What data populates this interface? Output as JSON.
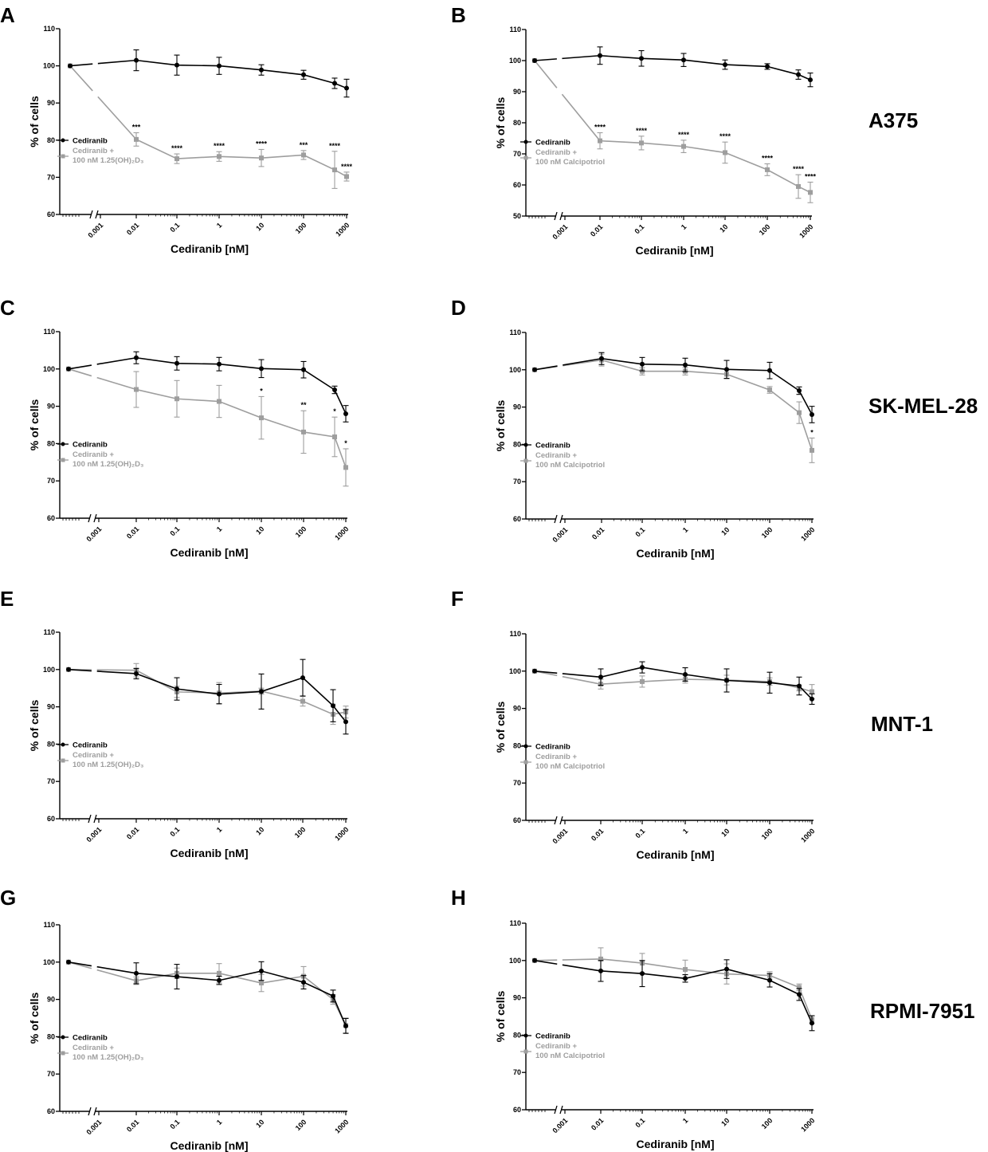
{
  "colors": {
    "control": "#000000",
    "combo": "#9e9e9e"
  },
  "cell_lines": [
    {
      "name": "A375"
    },
    {
      "name": "SK-MEL-28"
    },
    {
      "name": "MNT-1"
    },
    {
      "name": "RPMI-7951"
    }
  ],
  "chart_data": [
    {
      "panel": "A",
      "type": "line",
      "xlabel": "Cediranib [nM]",
      "ylabel": "% of cells",
      "xscale": "log",
      "xticks": [
        "0.001",
        "0.01",
        "0.1",
        "1",
        "10",
        "100",
        "1000"
      ],
      "yticks": [
        "60",
        "70",
        "80",
        "90",
        "100",
        "110"
      ],
      "ylim": [
        60,
        110
      ],
      "legend": [
        "Cediranib",
        "Cediranib +",
        "100 nM 1.25(OH)₂D₃"
      ],
      "series": [
        {
          "name": "Cediranib",
          "x": [
            0,
            0.01,
            0.1,
            1,
            10,
            100,
            500,
            1000
          ],
          "y": [
            100,
            101.5,
            100.2,
            100.0,
            98.9,
            97.6,
            95.3,
            94.0
          ],
          "err": [
            0,
            2.8,
            2.7,
            2.3,
            1.4,
            1.2,
            1.4,
            2.4
          ]
        },
        {
          "name": "Cediranib + 100 nM 1.25(OH)2D3",
          "x": [
            0,
            0.01,
            0.1,
            1,
            10,
            100,
            500,
            1000
          ],
          "y": [
            100,
            80.2,
            75.0,
            75.6,
            75.2,
            76.0,
            72.0,
            70.2
          ],
          "err": [
            0,
            1.8,
            1.3,
            1.3,
            2.3,
            1.2,
            5.0,
            1.2
          ],
          "stars": [
            "",
            "***",
            "****",
            "****",
            "****",
            "***",
            "****",
            "****"
          ]
        }
      ]
    },
    {
      "panel": "B",
      "type": "line",
      "xlabel": "Cediranib [nM]",
      "ylabel": "% of cells",
      "xscale": "log",
      "xticks": [
        "0.001",
        "0.01",
        "0.1",
        "1",
        "10",
        "100",
        "1000"
      ],
      "yticks": [
        "50",
        "60",
        "70",
        "80",
        "90",
        "100",
        "110"
      ],
      "ylim": [
        50,
        110
      ],
      "legend": [
        "Cediranib",
        "Cediranib +",
        "100 nM Calcipotriol"
      ],
      "series": [
        {
          "name": "Cediranib",
          "x": [
            0,
            0.01,
            0.1,
            1,
            10,
            100,
            500,
            1000
          ],
          "y": [
            100,
            101.6,
            100.7,
            100.2,
            98.7,
            98.1,
            95.5,
            93.8
          ],
          "err": [
            0,
            2.8,
            2.5,
            2.1,
            1.5,
            0.9,
            1.5,
            2.2
          ]
        },
        {
          "name": "Cediranib + 100 nM Calcipotriol",
          "x": [
            0,
            0.01,
            0.1,
            1,
            10,
            100,
            500,
            1000
          ],
          "y": [
            100,
            74.2,
            73.5,
            72.4,
            70.4,
            64.9,
            59.5,
            57.6
          ],
          "err": [
            0,
            2.6,
            2.2,
            2.0,
            3.4,
            1.9,
            3.8,
            3.3
          ],
          "stars": [
            "",
            "****",
            "****",
            "****",
            "****",
            "****",
            "****",
            "****"
          ]
        }
      ]
    },
    {
      "panel": "C",
      "type": "line",
      "xlabel": "Cediranib [nM]",
      "ylabel": "% of cells",
      "xscale": "log",
      "xticks": [
        "0.001",
        "0.01",
        "0.1",
        "1",
        "10",
        "100",
        "1000"
      ],
      "yticks": [
        "60",
        "70",
        "80",
        "90",
        "100",
        "110"
      ],
      "ylim": [
        60,
        110
      ],
      "legend": [
        "Cediranib",
        "Cediranib +",
        "100 nM 1.25(OH)₂D₃"
      ],
      "series": [
        {
          "name": "Cediranib",
          "x": [
            0,
            0.01,
            0.1,
            1,
            10,
            100,
            500,
            1000
          ],
          "y": [
            100,
            103.0,
            101.5,
            101.3,
            100.1,
            99.8,
            94.4,
            88.0
          ],
          "err": [
            0,
            1.6,
            1.8,
            1.8,
            2.4,
            2.2,
            1.0,
            2.2
          ]
        },
        {
          "name": "Cediranib + 100 nM 1.25(OH)2D3",
          "x": [
            0,
            0.01,
            0.1,
            1,
            10,
            100,
            500,
            1000
          ],
          "y": [
            100,
            94.5,
            92.0,
            91.3,
            86.9,
            83.1,
            81.8,
            73.6
          ],
          "err": [
            0,
            4.8,
            4.9,
            4.3,
            5.7,
            5.7,
            5.3,
            5.0
          ],
          "stars": [
            "",
            "",
            "",
            "",
            "*",
            "**",
            "*",
            "*"
          ]
        }
      ]
    },
    {
      "panel": "D",
      "type": "line",
      "xlabel": "Cediranib [nM]",
      "ylabel": "% of cells",
      "xscale": "log",
      "xticks": [
        "0.001",
        "0.01",
        "0.1",
        "1",
        "10",
        "100",
        "1000"
      ],
      "yticks": [
        "60",
        "70",
        "80",
        "90",
        "100",
        "110"
      ],
      "ylim": [
        60,
        110
      ],
      "legend": [
        "Cediranib",
        "Cediranib +",
        "100 nM Calcipotriol"
      ],
      "series": [
        {
          "name": "Cediranib",
          "x": [
            0,
            0.01,
            0.1,
            1,
            10,
            100,
            500,
            1000
          ],
          "y": [
            100,
            103.0,
            101.5,
            101.3,
            100.1,
            99.8,
            94.4,
            88.0
          ],
          "err": [
            0,
            1.6,
            1.8,
            1.8,
            2.4,
            2.2,
            1.0,
            2.2
          ]
        },
        {
          "name": "Cediranib + 100 nM Calcipotriol",
          "x": [
            0,
            0.01,
            0.1,
            1,
            10,
            100,
            500,
            1000
          ],
          "y": [
            100,
            102.6,
            99.6,
            99.6,
            98.8,
            94.6,
            88.5,
            78.4
          ],
          "err": [
            0,
            1.6,
            1.0,
            1.0,
            1.2,
            0.9,
            2.9,
            3.3
          ],
          "stars": [
            "",
            "",
            "",
            "",
            "",
            "",
            "",
            "*"
          ]
        }
      ]
    },
    {
      "panel": "E",
      "type": "line",
      "xlabel": "Cediranib [nM]",
      "ylabel": "% of cells",
      "xscale": "log",
      "xticks": [
        "0.001",
        "0.01",
        "0.1",
        "1",
        "10",
        "100",
        "1000"
      ],
      "yticks": [
        "60",
        "70",
        "80",
        "90",
        "100",
        "110"
      ],
      "ylim": [
        60,
        110
      ],
      "legend": [
        "Cediranib",
        "Cediranib +",
        "100 nM 1.25(OH)₂D₃"
      ],
      "series": [
        {
          "name": "Cediranib",
          "x": [
            0,
            0.01,
            0.1,
            1,
            10,
            100,
            500,
            1000
          ],
          "y": [
            100,
            98.9,
            94.8,
            93.4,
            94.1,
            97.8,
            90.3,
            86.0
          ],
          "err": [
            0,
            1.4,
            3.0,
            2.6,
            4.7,
            4.9,
            4.3,
            3.3
          ]
        },
        {
          "name": "Cediranib + 100 nM 1.25(OH)2D3",
          "x": [
            0,
            0.01,
            0.1,
            1,
            10,
            100,
            500,
            1000
          ],
          "y": [
            100,
            99.8,
            94.0,
            93.7,
            94.2,
            91.5,
            88.0,
            88.6
          ],
          "err": [
            0,
            1.8,
            1.5,
            2.8,
            0.8,
            1.3,
            2.7,
            1.6
          ],
          "stars": [
            "",
            "",
            "",
            "",
            "",
            "",
            "",
            ""
          ]
        }
      ]
    },
    {
      "panel": "F",
      "type": "line",
      "xlabel": "Cediranib [nM]",
      "ylabel": "% of cells",
      "xscale": "log",
      "xticks": [
        "0.001",
        "0.01",
        "0.1",
        "1",
        "10",
        "100",
        "1000"
      ],
      "yticks": [
        "60",
        "70",
        "80",
        "90",
        "100",
        "110"
      ],
      "ylim": [
        60,
        110
      ],
      "legend": [
        "Cediranib",
        "Cediranib +",
        "100 nM Calcipotriol"
      ],
      "series": [
        {
          "name": "Cediranib",
          "x": [
            0,
            0.01,
            0.1,
            1,
            10,
            100,
            500,
            1000
          ],
          "y": [
            100,
            98.4,
            101.0,
            99.1,
            97.5,
            96.9,
            96.0,
            92.5
          ],
          "err": [
            0,
            2.2,
            1.5,
            1.8,
            3.1,
            2.8,
            2.4,
            1.4
          ]
        },
        {
          "name": "Cediranib + 100 nM Calcipotriol",
          "x": [
            0,
            0.01,
            0.1,
            1,
            10,
            100,
            500,
            1000
          ],
          "y": [
            100,
            96.5,
            97.2,
            97.8,
            97.6,
            97.2,
            95.5,
            94.5
          ],
          "err": [
            0,
            1.3,
            1.5,
            1.0,
            1.3,
            1.0,
            0.8,
            1.9
          ],
          "stars": [
            "",
            "",
            "",
            "",
            "",
            "",
            "",
            ""
          ]
        }
      ]
    },
    {
      "panel": "G",
      "type": "line",
      "xlabel": "Cediranib [nM]",
      "ylabel": "% of cells",
      "xscale": "log",
      "xticks": [
        "0.001",
        "0.01",
        "0.1",
        "1",
        "10",
        "100",
        "1000"
      ],
      "yticks": [
        "60",
        "70",
        "80",
        "90",
        "100",
        "110"
      ],
      "ylim": [
        60,
        110
      ],
      "legend": [
        "Cediranib",
        "Cediranib +",
        "100 nM 1.25(OH)₂D₃"
      ],
      "series": [
        {
          "name": "Cediranib",
          "x": [
            0,
            0.01,
            0.1,
            1,
            10,
            100,
            500,
            1000
          ],
          "y": [
            100,
            97.0,
            96.1,
            95.1,
            97.6,
            94.6,
            90.9,
            82.9
          ],
          "err": [
            0,
            2.8,
            3.3,
            1.1,
            2.5,
            1.8,
            1.6,
            2.0
          ]
        },
        {
          "name": "Cediranib + 100 nM 1.25(OH)2D3",
          "x": [
            0,
            0.01,
            0.1,
            1,
            10,
            100,
            500,
            1000
          ],
          "y": [
            100,
            95.0,
            97.0,
            97.0,
            94.4,
            96.2,
            90.0,
            83.0
          ],
          "err": [
            0,
            1.0,
            1.4,
            2.6,
            2.3,
            2.6,
            1.3,
            2.0
          ],
          "stars": [
            "",
            "",
            "",
            "",
            "",
            "",
            "",
            ""
          ]
        }
      ]
    },
    {
      "panel": "H",
      "type": "line",
      "xlabel": "Cediranib [nM]",
      "ylabel": "% of cells",
      "xscale": "log",
      "xticks": [
        "0.001",
        "0.01",
        "0.1",
        "1",
        "10",
        "100",
        "1000"
      ],
      "yticks": [
        "60",
        "70",
        "80",
        "90",
        "100",
        "110"
      ],
      "ylim": [
        60,
        110
      ],
      "legend": [
        "Cediranib",
        "Cediranib +",
        "100 nM Calcipotriol"
      ],
      "series": [
        {
          "name": "Cediranib",
          "x": [
            0,
            0.01,
            0.1,
            1,
            10,
            100,
            500,
            1000
          ],
          "y": [
            100,
            97.2,
            96.5,
            95.2,
            97.7,
            94.7,
            90.9,
            83.2
          ],
          "err": [
            0,
            2.8,
            3.5,
            1.0,
            2.5,
            1.8,
            1.6,
            2.0
          ]
        },
        {
          "name": "Cediranib + 100 nM Calcipotriol",
          "x": [
            0,
            0.01,
            0.1,
            1,
            10,
            100,
            500,
            1000
          ],
          "y": [
            100,
            100.4,
            99.3,
            97.6,
            96.4,
            96.0,
            92.8,
            84.2
          ],
          "err": [
            0,
            3.0,
            2.6,
            2.5,
            2.7,
            1.0,
            0.9,
            1.0
          ],
          "stars": [
            "",
            "",
            "",
            "",
            "",
            "",
            "",
            ""
          ]
        }
      ]
    }
  ]
}
